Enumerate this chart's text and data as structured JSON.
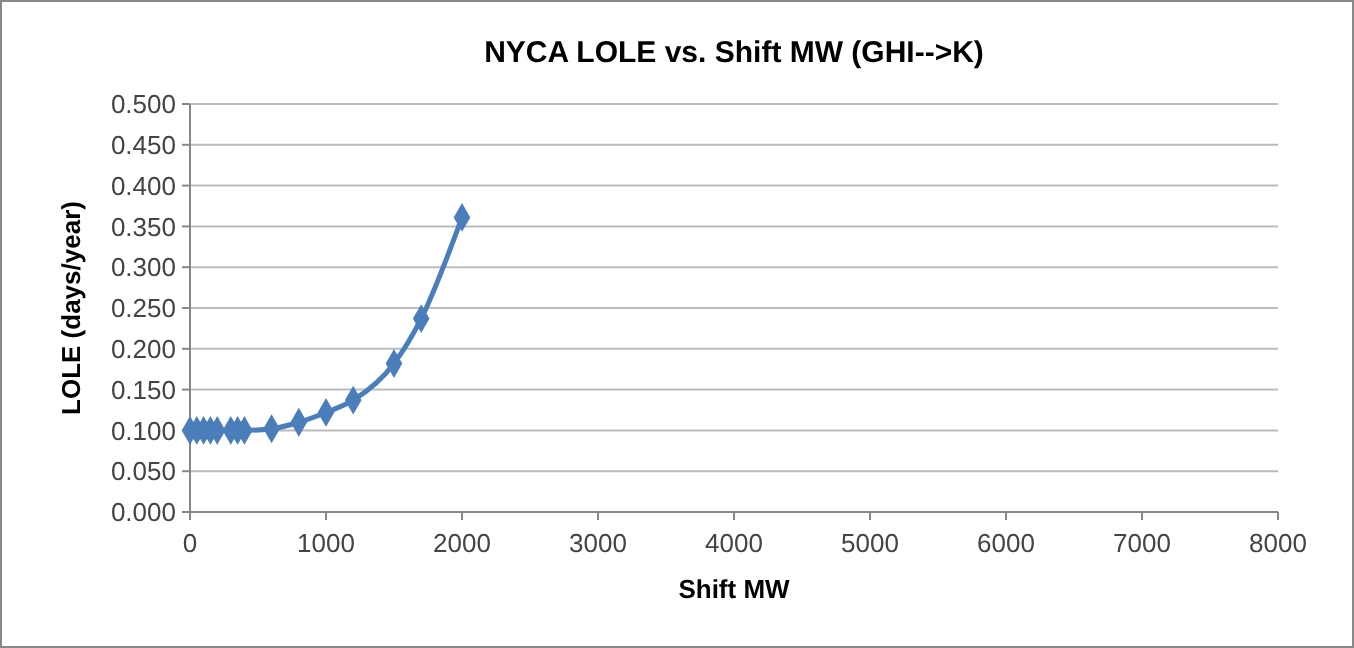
{
  "chart_data": {
    "type": "line",
    "title": "NYCA LOLE vs. Shift MW (GHI-->K)",
    "xlabel": "Shift MW",
    "ylabel": "LOLE (days/year)",
    "x": [
      0,
      50,
      100,
      150,
      200,
      300,
      350,
      400,
      600,
      800,
      1000,
      1200,
      1500,
      1700,
      2000
    ],
    "series": [
      {
        "color": "#4a7ebb",
        "values": [
          0.1,
          0.1,
          0.1,
          0.1,
          0.1,
          0.1,
          0.1,
          0.1,
          0.102,
          0.11,
          0.122,
          0.137,
          0.182,
          0.237,
          0.361
        ]
      }
    ],
    "xlim": [
      0,
      8000
    ],
    "xticks": [
      0,
      1000,
      2000,
      3000,
      4000,
      5000,
      6000,
      7000,
      8000
    ],
    "ylim": [
      0,
      0.5
    ],
    "yticks": [
      {
        "value": 0,
        "label": "0.000"
      },
      {
        "value": 0.05,
        "label": "0.050"
      },
      {
        "value": 0.1,
        "label": "0.100"
      },
      {
        "value": 0.15,
        "label": "0.150"
      },
      {
        "value": 0.2,
        "label": "0.200"
      },
      {
        "value": 0.25,
        "label": "0.250"
      },
      {
        "value": 0.3,
        "label": "0.300"
      },
      {
        "value": 0.35,
        "label": "0.350"
      },
      {
        "value": 0.4,
        "label": "0.400"
      },
      {
        "value": 0.45,
        "label": "0.450"
      },
      {
        "value": 0.5,
        "label": "0.500"
      }
    ],
    "grid": "y",
    "marker": "diamond",
    "line_style": "solid"
  }
}
